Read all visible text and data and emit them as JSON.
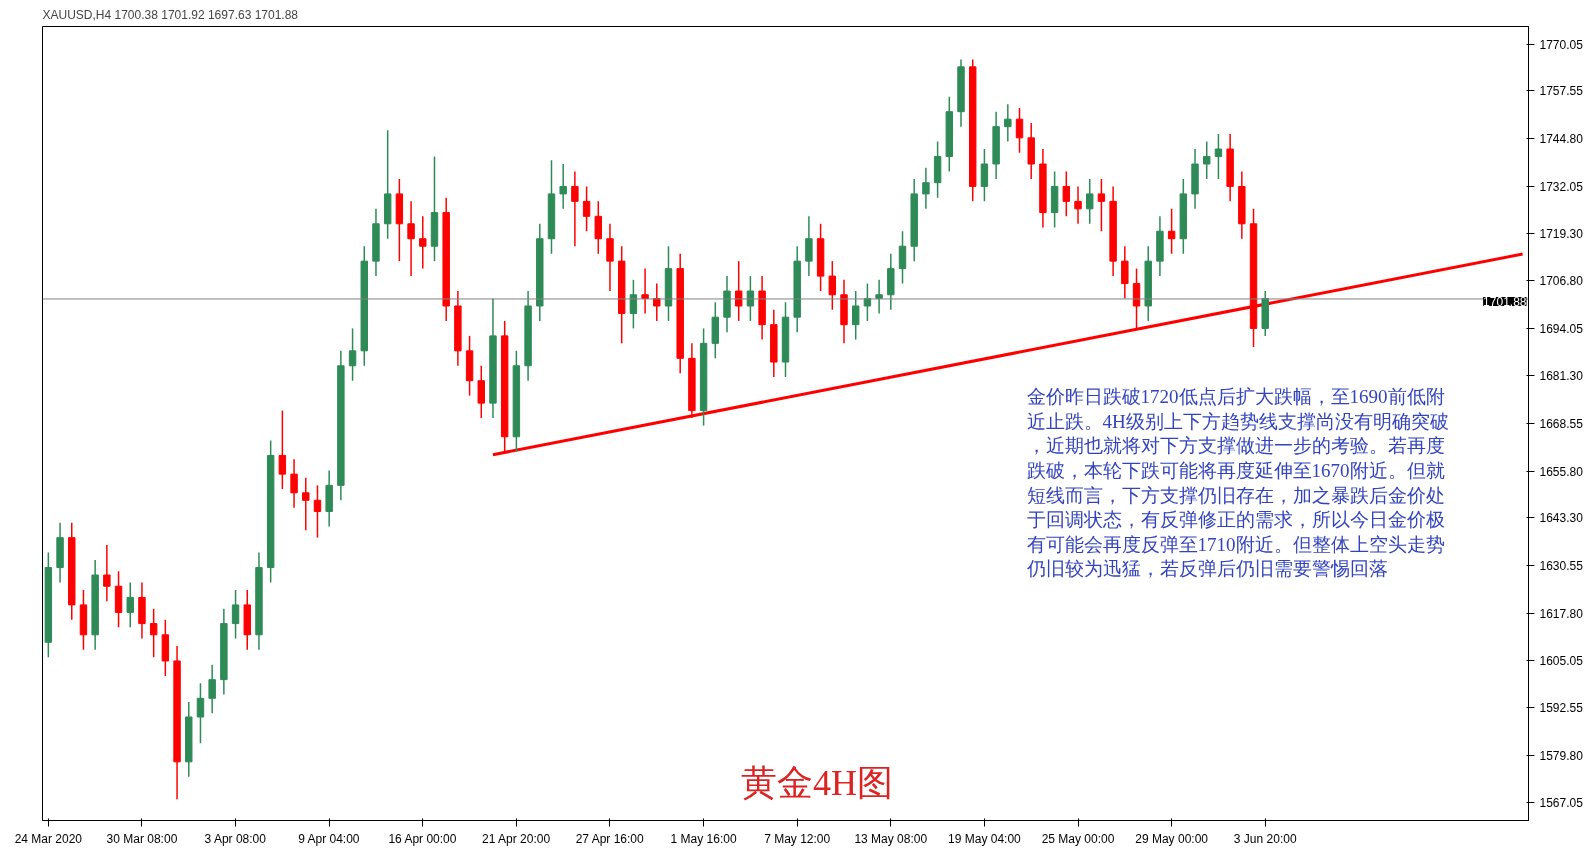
{
  "chart_data": {
    "type": "candlestick",
    "title": "XAUUSD,H4  1700.38 1701.92 1697.63 1701.88",
    "categories": [
      "24 Mar 2020",
      null,
      null,
      null,
      null,
      null,
      null,
      null,
      "30 Mar 08:00",
      null,
      null,
      null,
      null,
      null,
      null,
      null,
      "3 Apr 08:00",
      null,
      null,
      null,
      null,
      null,
      null,
      null,
      "9 Apr 04:00",
      null,
      null,
      null,
      null,
      null,
      null,
      null,
      "16 Apr 00:00",
      null,
      null,
      null,
      null,
      null,
      null,
      null,
      "21 Apr 20:00",
      null,
      null,
      null,
      null,
      null,
      null,
      null,
      "27 Apr 16:00",
      null,
      null,
      null,
      null,
      null,
      null,
      null,
      "1 May 16:00",
      null,
      null,
      null,
      null,
      null,
      null,
      null,
      "7 May 12:00",
      null,
      null,
      null,
      null,
      null,
      null,
      null,
      "13 May 08:00",
      null,
      null,
      null,
      null,
      null,
      null,
      null,
      "19 May 04:00",
      null,
      null,
      null,
      null,
      null,
      null,
      null,
      "25 May 00:00",
      null,
      null,
      null,
      null,
      null,
      null,
      null,
      "29 May 00:00",
      null,
      null,
      null,
      null,
      null,
      null,
      null,
      "3 Jun 20:00",
      null,
      null,
      null,
      null,
      null,
      null,
      null,
      null,
      null,
      null,
      null,
      null,
      null,
      null,
      null,
      null,
      null,
      null,
      null,
      null,
      null,
      null
    ],
    "ohlc": [
      [
        1610,
        1634,
        1606,
        1630
      ],
      [
        1630,
        1642,
        1626,
        1638
      ],
      [
        1638,
        1642,
        1616,
        1620
      ],
      [
        1620,
        1624,
        1608,
        1612
      ],
      [
        1612,
        1632,
        1608,
        1628
      ],
      [
        1628,
        1636,
        1621,
        1625
      ],
      [
        1625,
        1629,
        1614,
        1618
      ],
      [
        1618,
        1626,
        1614,
        1622
      ],
      [
        1622,
        1626,
        1611,
        1615
      ],
      [
        1615,
        1619,
        1606,
        1612
      ],
      [
        1612,
        1616,
        1601,
        1605
      ],
      [
        1605,
        1609,
        1568,
        1578
      ],
      [
        1578,
        1594,
        1574,
        1590
      ],
      [
        1590,
        1599,
        1583,
        1595
      ],
      [
        1595,
        1604,
        1591,
        1600
      ],
      [
        1600,
        1619,
        1596,
        1615
      ],
      [
        1615,
        1624,
        1611,
        1620
      ],
      [
        1620,
        1624,
        1608,
        1612
      ],
      [
        1612,
        1634,
        1608,
        1630
      ],
      [
        1630,
        1664,
        1626,
        1660
      ],
      [
        1660,
        1672,
        1651,
        1655
      ],
      [
        1655,
        1659,
        1646,
        1650
      ],
      [
        1650,
        1654,
        1640,
        1648
      ],
      [
        1648,
        1652,
        1638,
        1645
      ],
      [
        1645,
        1656,
        1641,
        1652
      ],
      [
        1652,
        1688,
        1648,
        1684
      ],
      [
        1684,
        1694,
        1680,
        1688
      ],
      [
        1688,
        1716,
        1684,
        1712
      ],
      [
        1712,
        1726,
        1708,
        1722
      ],
      [
        1722,
        1747,
        1718,
        1730
      ],
      [
        1730,
        1734,
        1712,
        1722
      ],
      [
        1722,
        1728,
        1708,
        1718
      ],
      [
        1718,
        1724,
        1710,
        1716
      ],
      [
        1716,
        1740,
        1712,
        1725
      ],
      [
        1725,
        1729,
        1696,
        1700
      ],
      [
        1700,
        1704,
        1684,
        1688
      ],
      [
        1688,
        1692,
        1676,
        1680
      ],
      [
        1680,
        1684,
        1670,
        1674
      ],
      [
        1674,
        1702,
        1670,
        1692
      ],
      [
        1692,
        1696,
        1661,
        1665
      ],
      [
        1665,
        1688,
        1661,
        1684
      ],
      [
        1684,
        1704,
        1680,
        1700
      ],
      [
        1700,
        1722,
        1696,
        1718
      ],
      [
        1718,
        1739,
        1714,
        1730
      ],
      [
        1730,
        1738,
        1726,
        1732
      ],
      [
        1732,
        1736,
        1716,
        1728
      ],
      [
        1728,
        1732,
        1720,
        1724
      ],
      [
        1724,
        1728,
        1714,
        1718
      ],
      [
        1718,
        1722,
        1704,
        1712
      ],
      [
        1712,
        1716,
        1690,
        1698
      ],
      [
        1698,
        1707,
        1694,
        1703
      ],
      [
        1703,
        1710,
        1698,
        1702
      ],
      [
        1702,
        1706,
        1696,
        1700
      ],
      [
        1700,
        1716,
        1696,
        1710
      ],
      [
        1710,
        1714,
        1682,
        1686
      ],
      [
        1686,
        1690,
        1670,
        1672
      ],
      [
        1672,
        1694,
        1668,
        1690
      ],
      [
        1690,
        1701,
        1686,
        1697
      ],
      [
        1697,
        1708,
        1693,
        1704
      ],
      [
        1704,
        1712,
        1696,
        1700
      ],
      [
        1700,
        1708,
        1696,
        1704
      ],
      [
        1704,
        1708,
        1691,
        1695
      ],
      [
        1695,
        1699,
        1681,
        1685
      ],
      [
        1685,
        1701,
        1681,
        1697
      ],
      [
        1697,
        1716,
        1693,
        1712
      ],
      [
        1712,
        1724,
        1708,
        1718
      ],
      [
        1718,
        1722,
        1704,
        1708
      ],
      [
        1708,
        1712,
        1699,
        1703
      ],
      [
        1703,
        1707,
        1690,
        1695
      ],
      [
        1695,
        1704,
        1691,
        1700
      ],
      [
        1700,
        1706,
        1696,
        1702
      ],
      [
        1702,
        1707,
        1698,
        1703
      ],
      [
        1703,
        1714,
        1699,
        1710
      ],
      [
        1710,
        1720,
        1706,
        1716
      ],
      [
        1716,
        1734,
        1712,
        1730
      ],
      [
        1730,
        1737,
        1726,
        1733
      ],
      [
        1733,
        1744,
        1729,
        1740
      ],
      [
        1740,
        1756,
        1736,
        1752
      ],
      [
        1752,
        1766,
        1748,
        1764
      ],
      [
        1764,
        1766,
        1728,
        1732
      ],
      [
        1732,
        1742,
        1728,
        1738
      ],
      [
        1738,
        1752,
        1734,
        1748
      ],
      [
        1748,
        1754,
        1744,
        1750
      ],
      [
        1750,
        1753,
        1741,
        1745
      ],
      [
        1745,
        1749,
        1734,
        1738
      ],
      [
        1738,
        1742,
        1721,
        1725
      ],
      [
        1725,
        1736,
        1721,
        1732
      ],
      [
        1732,
        1736,
        1724,
        1728
      ],
      [
        1728,
        1732,
        1722,
        1726
      ],
      [
        1726,
        1734,
        1722,
        1730
      ],
      [
        1730,
        1734,
        1720,
        1728
      ],
      [
        1728,
        1732,
        1708,
        1712
      ],
      [
        1712,
        1716,
        1702,
        1706
      ],
      [
        1706,
        1710,
        1694,
        1700
      ],
      [
        1700,
        1716,
        1696,
        1712
      ],
      [
        1712,
        1724,
        1708,
        1720
      ],
      [
        1720,
        1726,
        1714,
        1718
      ],
      [
        1718,
        1734,
        1714,
        1730
      ],
      [
        1730,
        1742,
        1726,
        1738
      ],
      [
        1738,
        1744,
        1734,
        1740
      ],
      [
        1740,
        1746,
        1734,
        1742
      ],
      [
        1742,
        1746,
        1728,
        1732
      ],
      [
        1732,
        1736,
        1718,
        1722
      ],
      [
        1722,
        1726,
        1689,
        1694
      ],
      [
        1694,
        1704,
        1692,
        1702
      ],
      null,
      null,
      null,
      null,
      null,
      null,
      null,
      null,
      null,
      null,
      null,
      null,
      null,
      null,
      null,
      null,
      null,
      null,
      null,
      null,
      null,
      null
    ],
    "colors": [
      "#2e8b57",
      "#2e8b57",
      "#ff0000",
      "#ff0000",
      "#2e8b57",
      "#ff0000",
      "#ff0000",
      "#2e8b57",
      "#ff0000",
      "#ff0000",
      "#ff0000",
      "#ff0000",
      "#2e8b57",
      "#2e8b57",
      "#2e8b57",
      "#2e8b57",
      "#2e8b57",
      "#ff0000",
      "#2e8b57",
      "#2e8b57",
      "#ff0000",
      "#ff0000",
      "#ff0000",
      "#ff0000",
      "#2e8b57",
      "#2e8b57",
      "#2e8b57",
      "#2e8b57",
      "#2e8b57",
      "#2e8b57",
      "#ff0000",
      "#ff0000",
      "#ff0000",
      "#2e8b57",
      "#ff0000",
      "#ff0000",
      "#ff0000",
      "#ff0000",
      "#2e8b57",
      "#ff0000",
      "#2e8b57",
      "#2e8b57",
      "#2e8b57",
      "#2e8b57",
      "#2e8b57",
      "#ff0000",
      "#ff0000",
      "#ff0000",
      "#ff0000",
      "#ff0000",
      "#2e8b57",
      "#ff0000",
      "#ff0000",
      "#2e8b57",
      "#ff0000",
      "#ff0000",
      "#2e8b57",
      "#2e8b57",
      "#2e8b57",
      "#ff0000",
      "#2e8b57",
      "#ff0000",
      "#ff0000",
      "#2e8b57",
      "#2e8b57",
      "#2e8b57",
      "#ff0000",
      "#ff0000",
      "#ff0000",
      "#2e8b57",
      "#2e8b57",
      "#2e8b57",
      "#2e8b57",
      "#2e8b57",
      "#2e8b57",
      "#2e8b57",
      "#2e8b57",
      "#2e8b57",
      "#2e8b57",
      "#ff0000",
      "#2e8b57",
      "#2e8b57",
      "#2e8b57",
      "#ff0000",
      "#ff0000",
      "#ff0000",
      "#2e8b57",
      "#ff0000",
      "#ff0000",
      "#2e8b57",
      "#ff0000",
      "#ff0000",
      "#ff0000",
      "#ff0000",
      "#2e8b57",
      "#2e8b57",
      "#ff0000",
      "#2e8b57",
      "#2e8b57",
      "#2e8b57",
      "#2e8b57",
      "#ff0000",
      "#ff0000",
      "#ff0000",
      "#2e8b57",
      null,
      null,
      null,
      null,
      null,
      null,
      null,
      null,
      null,
      null,
      null,
      null,
      null,
      null,
      null,
      null,
      null,
      null,
      null,
      null,
      null,
      null
    ],
    "series": [
      {
        "type": "line",
        "color": "#ff0000",
        "values": [
          null,
          null,
          null,
          null,
          null,
          null,
          null,
          null,
          null,
          null,
          null,
          null,
          null,
          null,
          null,
          null,
          null,
          null,
          null,
          null,
          null,
          null,
          null,
          null,
          null,
          null,
          null,
          null,
          null,
          null,
          null,
          null,
          null,
          null,
          null,
          null,
          null,
          null,
          1660.2,
          null,
          null,
          null,
          null,
          null,
          null,
          null,
          null,
          null,
          null,
          null,
          null,
          null,
          null,
          null,
          null,
          null,
          null,
          null,
          null,
          null,
          null,
          null,
          null,
          null,
          null,
          null,
          null,
          null,
          null,
          null,
          null,
          null,
          null,
          null,
          null,
          null,
          null,
          null,
          null,
          null,
          null,
          null,
          null,
          null,
          null,
          null,
          null,
          null,
          null,
          null,
          null,
          null,
          null,
          null,
          null,
          null,
          null,
          null,
          null,
          null,
          null,
          null,
          null,
          null,
          null,
          null,
          null,
          null,
          null,
          null,
          null,
          null,
          null,
          null,
          null,
          null,
          null,
          null,
          null,
          null,
          null,
          null,
          null,
          null,
          null,
          null,
          1713.9
        ]
      }
    ],
    "ylim": [
      1562.3,
      1774.8
    ],
    "yticks": [
      1770.05,
      1757.55,
      {
        "value": 1744.8,
        "label": "1744.80"
      },
      1732.05,
      {
        "value": 1719.3,
        "label": "1719.30"
      },
      {
        "value": 1706.8,
        "label": "1706.80"
      },
      1694.05,
      {
        "value": 1681.3,
        "label": "1681.30"
      },
      1668.55,
      {
        "value": 1655.8,
        "label": "1655.80"
      },
      {
        "value": 1643.3,
        "label": "1643.30"
      },
      1630.55,
      {
        "value": 1617.8,
        "label": "1617.80"
      },
      1605.05,
      1592.55,
      {
        "value": 1579.8,
        "label": "1579.80"
      },
      1567.05
    ],
    "ref_lines": [
      {
        "axis": "y",
        "value": 1701.88,
        "label": "1701.88",
        "color": "#808080"
      }
    ],
    "annotations": [
      "金价昨日跌破1720低点后扩大跌幅，至1690前低附近止跌。4H级别上下方趋势线支撑尚没有明确突破，近期也就将对下方支撑做进一步的考验。若再度跌破，本轮下跌可能将再度延伸至1670附近。但就短线而言，下方支撑仍旧存在，加之暴跌后金价处于回调状态，有反弹修正的需求，所以今日金价极有可能会再度反弹至1710附近。但整体上空头走势仍旧较为迅猛，若反弹后仍旧需要警惕回落",
      "黄金4H图"
    ],
    "grid": false
  }
}
